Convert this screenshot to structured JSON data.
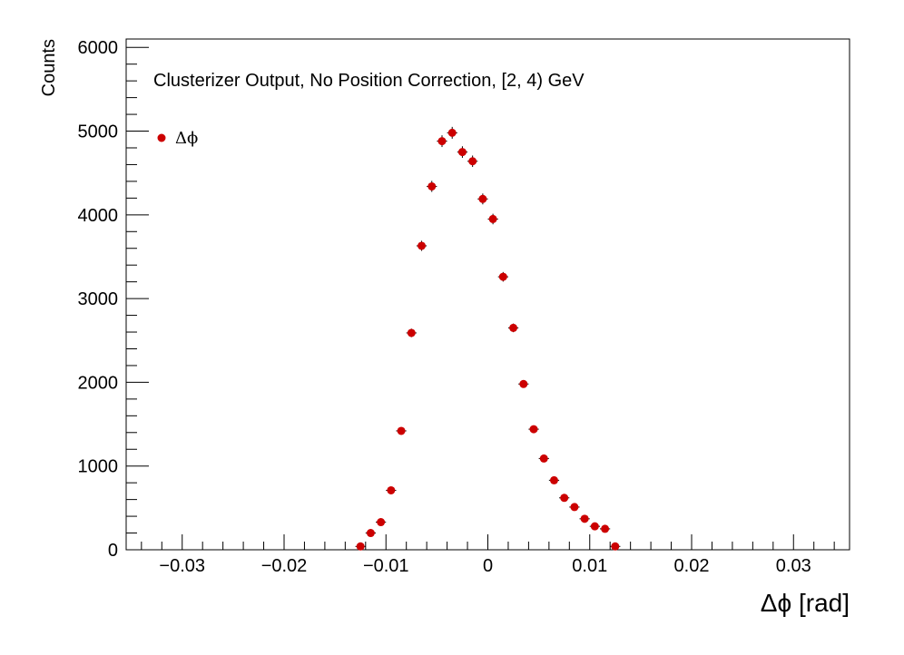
{
  "chart_data": {
    "type": "scatter",
    "title": "",
    "annotation": "Clusterizer Output, No Position Correction, [2, 4) GeV",
    "xlabel": "Δϕ  [rad]",
    "ylabel": "Counts",
    "xlim": [
      -0.0355,
      0.0355
    ],
    "ylim": [
      0,
      6100
    ],
    "xticks": [
      -0.03,
      -0.02,
      -0.01,
      0,
      0.01,
      0.02,
      0.03
    ],
    "xtick_labels": [
      "−0.03",
      "−0.02",
      "−0.01",
      "0",
      "0.01",
      "0.02",
      "0.03"
    ],
    "yticks": [
      0,
      1000,
      2000,
      3000,
      4000,
      5000,
      6000
    ],
    "ytick_labels": [
      "0",
      "1000",
      "2000",
      "3000",
      "4000",
      "5000",
      "6000"
    ],
    "grid": false,
    "legend_position": "top-left",
    "marker_color": "#cc0000",
    "bin_width": 0.001,
    "series": [
      {
        "name": "Δϕ",
        "x": [
          -0.0125,
          -0.0115,
          -0.0105,
          -0.0095,
          -0.0085,
          -0.0075,
          -0.0065,
          -0.0055,
          -0.0045,
          -0.0035,
          -0.0025,
          -0.0015,
          -0.0005,
          0.0005,
          0.0015,
          0.0025,
          0.0035,
          0.0045,
          0.0055,
          0.0065,
          0.0075,
          0.0085,
          0.0095,
          0.0105,
          0.0115,
          0.0125
        ],
        "y": [
          40,
          200,
          330,
          710,
          1420,
          2590,
          3630,
          4340,
          4880,
          4980,
          4750,
          4640,
          4190,
          3950,
          3260,
          2650,
          1980,
          1440,
          1090,
          830,
          620,
          510,
          370,
          280,
          250,
          40
        ]
      }
    ]
  }
}
